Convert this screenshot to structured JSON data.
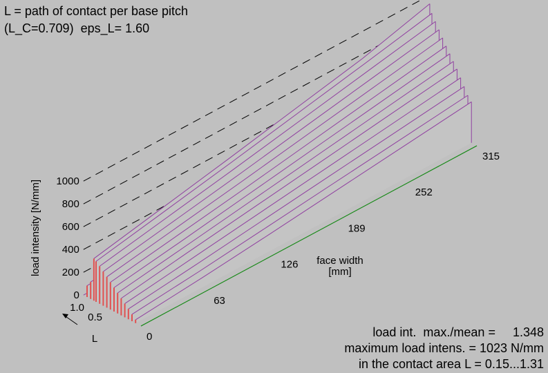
{
  "header": {
    "line1": "L = path of contact per base pitch",
    "line2": "(L_C=0.709)  eps_L= 1.60"
  },
  "stats": {
    "line1": "load int.  max./mean =     1.348",
    "line2": "maximum load intens. = 1023 N/mm",
    "line3": "in the contact area L = 0.15...1.31"
  },
  "chart_data": {
    "type": "surface-3d",
    "title": "",
    "zlabel": "load intensity  [N/mm]",
    "xlabel": "face width\n[mm]",
    "ylabel": "L",
    "z_ticks": [
      "0",
      "200",
      "400",
      "600",
      "800",
      "1000"
    ],
    "z_tick_values": [
      0,
      200,
      400,
      600,
      800,
      1000
    ],
    "x_ticks": [
      "0",
      "63",
      "126",
      "189",
      "252",
      "315"
    ],
    "x_tick_values": [
      0,
      63,
      126,
      189,
      252,
      315
    ],
    "y_ticks": [
      "0.5",
      "1.0"
    ],
    "y_tick_values": [
      0.5,
      1.0
    ],
    "zlim": [
      0,
      1000
    ],
    "xlim": [
      0,
      315
    ],
    "ylim": [
      0,
      1.6
    ],
    "L_values": [
      0.0,
      0.15,
      0.25,
      0.35,
      0.45,
      0.55,
      0.65,
      0.75,
      0.85,
      0.95,
      1.05,
      1.15,
      1.25,
      1.31,
      1.4,
      1.5,
      1.6
    ],
    "face_width_values": [
      0,
      63,
      126,
      189,
      252,
      315
    ],
    "series": [
      {
        "L": 0.0,
        "values": [
          0,
          0,
          0,
          0,
          0,
          0
        ]
      },
      {
        "L": 0.15,
        "values": [
          30,
          85,
          150,
          220,
          290,
          360
        ]
      },
      {
        "L": 0.25,
        "values": [
          60,
          120,
          190,
          260,
          330,
          400
        ]
      },
      {
        "L": 0.35,
        "values": [
          90,
          160,
          235,
          310,
          385,
          460
        ]
      },
      {
        "L": 0.45,
        "values": [
          120,
          200,
          280,
          360,
          440,
          520
        ]
      },
      {
        "L": 0.55,
        "values": [
          150,
          240,
          325,
          410,
          495,
          580
        ]
      },
      {
        "L": 0.65,
        "values": [
          180,
          270,
          360,
          450,
          540,
          630
        ]
      },
      {
        "L": 0.75,
        "values": [
          210,
          300,
          395,
          490,
          585,
          680
        ]
      },
      {
        "L": 0.85,
        "values": [
          240,
          335,
          430,
          530,
          630,
          730
        ]
      },
      {
        "L": 0.95,
        "values": [
          270,
          370,
          470,
          575,
          680,
          785
        ]
      },
      {
        "L": 1.05,
        "values": [
          300,
          405,
          510,
          620,
          730,
          840
        ]
      },
      {
        "L": 1.15,
        "values": [
          330,
          440,
          550,
          665,
          780,
          895
        ]
      },
      {
        "L": 1.25,
        "values": [
          355,
          470,
          585,
          705,
          825,
          950
        ]
      },
      {
        "L": 1.31,
        "values": [
          370,
          490,
          610,
          735,
          860,
          1023
        ]
      },
      {
        "L": 1.4,
        "values": [
          150,
          160,
          170,
          180,
          190,
          200
        ]
      },
      {
        "L": 1.5,
        "values": [
          100,
          110,
          120,
          130,
          140,
          150
        ]
      },
      {
        "L": 1.6,
        "values": [
          0,
          0,
          0,
          0,
          0,
          0
        ]
      }
    ],
    "colors": {
      "background": "#c0c0c0",
      "surface": "#c4c4c4",
      "profile": "#9040a0",
      "front_edge": "#1a8a1a",
      "red_region": "#e05050",
      "grid_dash": "#000000"
    }
  }
}
